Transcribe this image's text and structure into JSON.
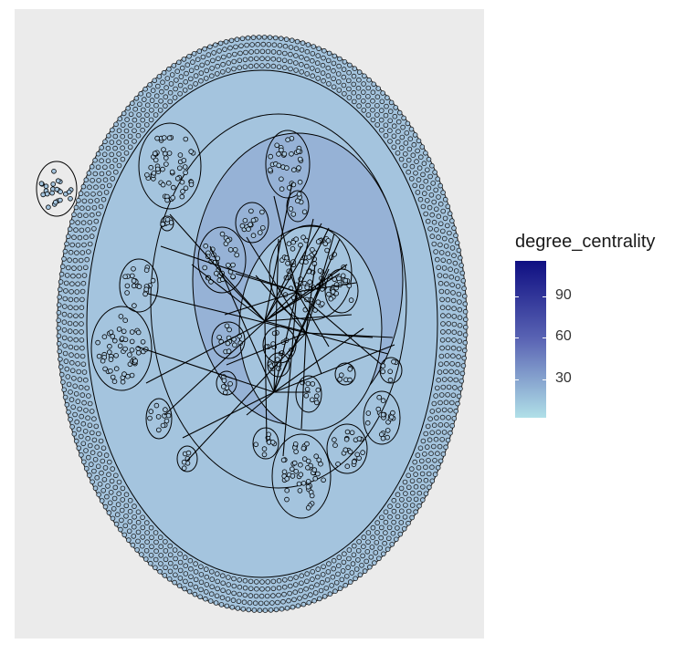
{
  "legend": {
    "title": "degree_centrality",
    "labels": [
      "90",
      "60",
      "30"
    ],
    "colors": {
      "high": "#0f0f82",
      "mid": "#5a64b4",
      "low": "#b0e0e8"
    }
  },
  "colors": {
    "panel_background": "#ebebeb",
    "outer_fill": "#a4c4de",
    "inner_fill": "#96b2d6",
    "stroke": "#000000"
  }
}
